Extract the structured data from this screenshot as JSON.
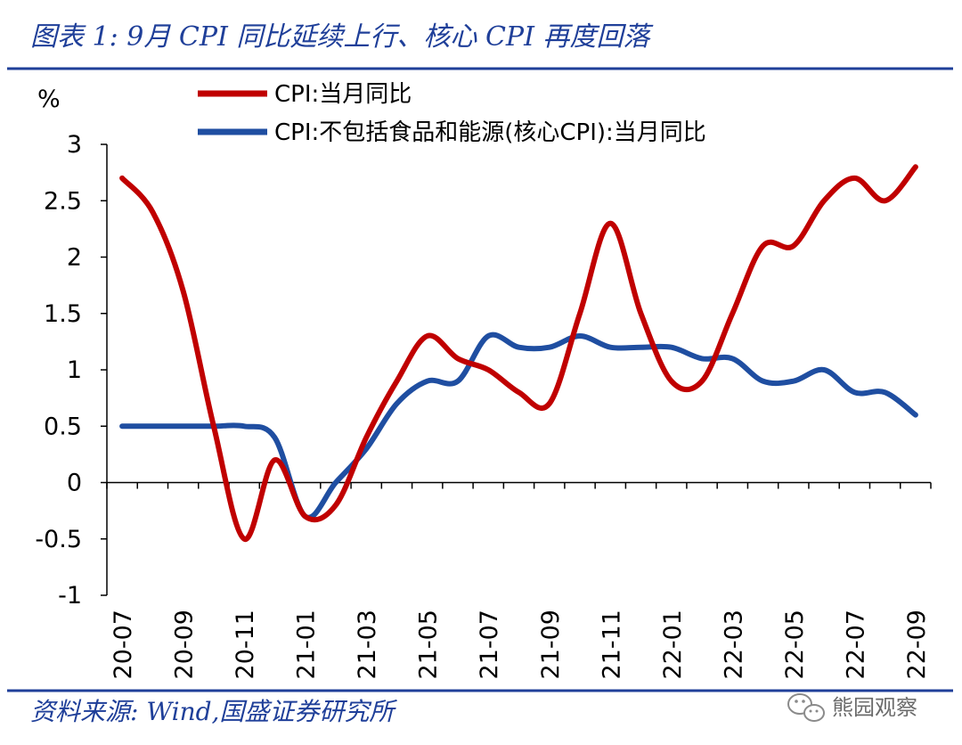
{
  "figure": {
    "title": "图表 1:  9月 CPI 同比延续上行、核心 CPI 再度回落",
    "source": "资料来源:  Wind,国盛证券研究所",
    "watermark": "熊园观察",
    "watermark_icon": "wechat-icon",
    "colors": {
      "title": "#1f3f99",
      "rule": "#1f3f99",
      "source": "#1f3f99"
    }
  },
  "chart_data": {
    "type": "line",
    "ylabel": "%",
    "ylim": [
      -1,
      3
    ],
    "yticks": [
      -1,
      -0.5,
      0,
      0.5,
      1,
      1.5,
      2,
      2.5,
      3
    ],
    "ytick_labels": [
      "-1",
      "-0.5",
      "0",
      "0.5",
      "1",
      "1.5",
      "2",
      "2.5",
      "3"
    ],
    "x": [
      "20-07",
      "20-08",
      "20-09",
      "20-10",
      "20-11",
      "20-12",
      "21-01",
      "21-02",
      "21-03",
      "21-04",
      "21-05",
      "21-06",
      "21-07",
      "21-08",
      "21-09",
      "21-10",
      "21-11",
      "21-12",
      "22-01",
      "22-02",
      "22-03",
      "22-04",
      "22-05",
      "22-06",
      "22-07",
      "22-08",
      "22-09"
    ],
    "xtick_labels": [
      "20-07",
      "20-09",
      "20-11",
      "21-01",
      "21-03",
      "21-05",
      "21-07",
      "21-09",
      "21-11",
      "22-01",
      "22-03",
      "22-05",
      "22-07",
      "22-09"
    ],
    "legend_position": "top-left",
    "grid": false,
    "series": [
      {
        "name": "CPI:当月同比",
        "color": "#c00000",
        "values": [
          2.7,
          2.4,
          1.7,
          0.5,
          -0.5,
          0.2,
          -0.3,
          -0.2,
          0.4,
          0.9,
          1.3,
          1.1,
          1.0,
          0.8,
          0.7,
          1.5,
          2.3,
          1.5,
          0.9,
          0.9,
          1.5,
          2.1,
          2.1,
          2.5,
          2.7,
          2.5,
          2.8
        ]
      },
      {
        "name": "CPI:不包括食品和能源(核心CPI):当月同比",
        "color": "#1f4ea1",
        "values": [
          0.5,
          0.5,
          0.5,
          0.5,
          0.5,
          0.4,
          -0.3,
          0.0,
          0.3,
          0.7,
          0.9,
          0.9,
          1.3,
          1.2,
          1.2,
          1.3,
          1.2,
          1.2,
          1.2,
          1.1,
          1.1,
          0.9,
          0.9,
          1.0,
          0.8,
          0.8,
          0.6
        ]
      }
    ]
  }
}
